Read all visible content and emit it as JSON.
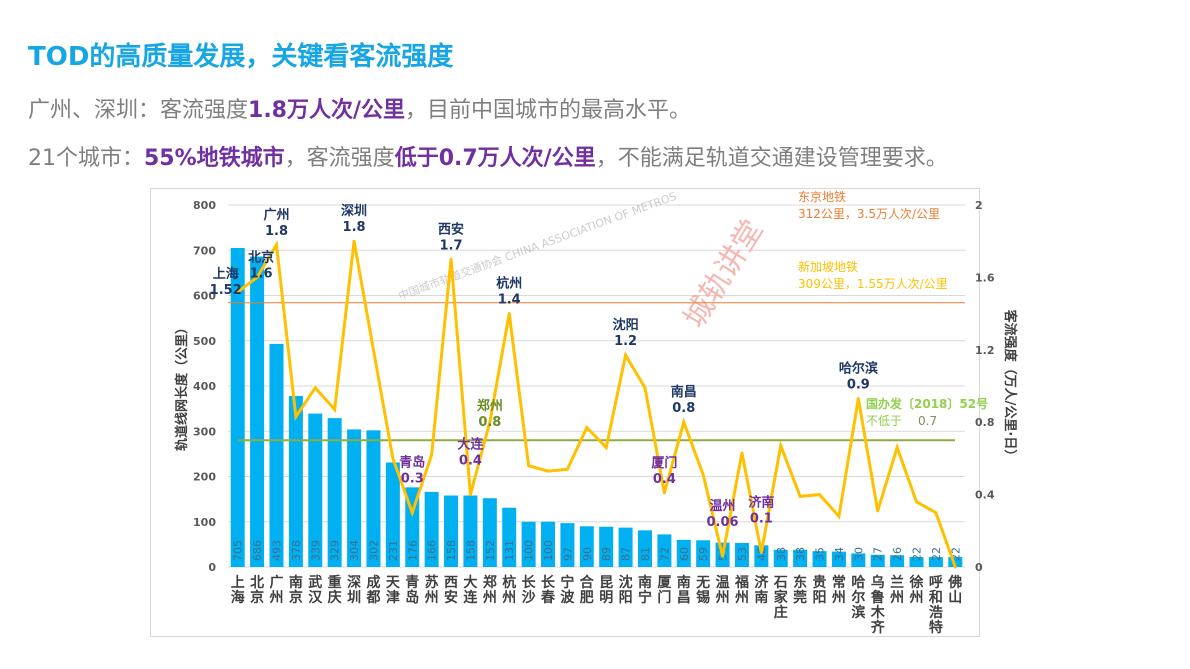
{
  "slide": {
    "title": "TOD的高质量发展，关键看客流强度",
    "line1": {
      "a": "广州、深圳：客流强度",
      "b": "1.8万人次/公里",
      "c": "，目前中国城市的最高水平。"
    },
    "line2": {
      "a": "21个城市：",
      "b": "55%地铁城市",
      "c": "，客流强度",
      "d": "低于0.7万人次/公里",
      "e": "，不能满足轨道交通建设管理要求。"
    }
  },
  "chart_data": {
    "type": "bar+line",
    "categories": [
      "上海",
      "北京",
      "广州",
      "南京",
      "武汉",
      "重庆",
      "深圳",
      "成都",
      "天津",
      "青岛",
      "苏州",
      "西安",
      "大连",
      "郑州",
      "杭州",
      "长沙",
      "长春",
      "宁波",
      "合肥",
      "昆明",
      "沈阳",
      "南宁",
      "厦门",
      "南昌",
      "无锡",
      "温州",
      "福州",
      "济南",
      "石家庄",
      "东莞",
      "贵阳",
      "常州",
      "哈尔滨",
      "乌鲁木齐",
      "兰州",
      "徐州",
      "呼和浩特",
      "佛山"
    ],
    "series": [
      {
        "type": "bar",
        "axis": "left",
        "color": "#00b0f0",
        "values": [
          705,
          686,
          493,
          378,
          339,
          329,
          304,
          302,
          231,
          176,
          166,
          158,
          158,
          152,
          131,
          100,
          100,
          97,
          90,
          89,
          87,
          81,
          72,
          60,
          59,
          54,
          53,
          48,
          38,
          38,
          35,
          34,
          30,
          27,
          26,
          22,
          22,
          22
        ]
      },
      {
        "type": "line",
        "axis": "right",
        "color": "#ffc000",
        "values": [
          1.52,
          1.6,
          1.78,
          0.83,
          0.99,
          0.87,
          1.8,
          1.2,
          0.6,
          0.3,
          0.62,
          1.7,
          0.4,
          0.8,
          1.4,
          0.56,
          0.53,
          0.54,
          0.77,
          0.66,
          1.17,
          0.99,
          0.41,
          0.8,
          0.51,
          0.06,
          0.63,
          0.08,
          0.67,
          0.39,
          0.4,
          0.28,
          0.93,
          0.31,
          0.66,
          0.36,
          0.3,
          0.0
        ]
      }
    ],
    "ylabel_left": "轨道线网长度（公里）",
    "ylabel_right": "客流强度（万人/公里·日）",
    "ylim_left": [
      0,
      800
    ],
    "yticks_left": [
      "0",
      "100",
      "200",
      "300",
      "400",
      "500",
      "600",
      "700",
      "800"
    ],
    "ylim_right": [
      0,
      2
    ],
    "yticks_right": [
      "0",
      "0.4",
      "0.8",
      "1.2",
      "1.6",
      "2"
    ],
    "grid": true,
    "reference_lines": [
      {
        "axis": "right",
        "value": 1.46,
        "color": "#ed7d31",
        "label1": "东京地铁",
        "label2": "312公里，3.5万人次/公里"
      },
      {
        "axis": "right",
        "value": 0.7,
        "color": "#8fac3e",
        "label1": "国办发〔2018〕52号",
        "label2a": "不低于",
        "label2b": "0.7"
      }
    ],
    "annotation_note": {
      "label": "新加坡地铁",
      "detail": "309公里，1.55万人次/公里",
      "color": "#ffc000"
    },
    "point_labels": [
      {
        "city": "上海",
        "value": "1.52",
        "color": "#1f3864"
      },
      {
        "city": "北京",
        "value": "1.6",
        "color": "#1f3864"
      },
      {
        "city": "广州",
        "value": "1.8",
        "color": "#1f3864"
      },
      {
        "city": "深圳",
        "value": "1.8",
        "color": "#1f3864"
      },
      {
        "city": "青岛",
        "value": "0.3",
        "color": "#7030a0"
      },
      {
        "city": "西安",
        "value": "1.7",
        "color": "#1f3864"
      },
      {
        "city": "大连",
        "value": "0.4",
        "color": "#7030a0"
      },
      {
        "city": "郑州",
        "value": "0.8",
        "color": "#6b8e23"
      },
      {
        "city": "杭州",
        "value": "1.4",
        "color": "#1f3864"
      },
      {
        "city": "沈阳",
        "value": "1.2",
        "color": "#1f3864"
      },
      {
        "city": "厦门",
        "value": "0.4",
        "color": "#7030a0"
      },
      {
        "city": "南昌",
        "value": "0.8",
        "color": "#1f3864"
      },
      {
        "city": "温州",
        "value": "0.06",
        "color": "#7030a0"
      },
      {
        "city": "济南",
        "value": "0.1",
        "color": "#7030a0"
      },
      {
        "city": "哈尔滨",
        "value": "0.9",
        "color": "#1f3864"
      }
    ],
    "watermark": "城轨讲堂",
    "watermark2": "中国城市轨道交通协会 CHINA ASSOCIATION OF METROS"
  }
}
